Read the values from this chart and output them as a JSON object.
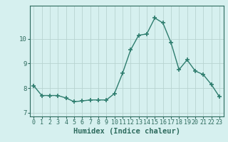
{
  "x": [
    0,
    1,
    2,
    3,
    4,
    5,
    6,
    7,
    8,
    9,
    10,
    11,
    12,
    13,
    14,
    15,
    16,
    17,
    18,
    19,
    20,
    21,
    22,
    23
  ],
  "y": [
    8.1,
    7.7,
    7.7,
    7.7,
    7.6,
    7.45,
    7.48,
    7.52,
    7.52,
    7.52,
    7.78,
    8.6,
    9.55,
    10.15,
    10.2,
    10.85,
    10.65,
    9.85,
    8.75,
    9.15,
    8.7,
    8.55,
    8.15,
    7.65
  ],
  "xlabel": "Humidex (Indice chaleur)",
  "xlim": [
    -0.5,
    23.5
  ],
  "ylim": [
    6.85,
    11.35
  ],
  "yticks": [
    7,
    8,
    9,
    10
  ],
  "xticks": [
    0,
    1,
    2,
    3,
    4,
    5,
    6,
    7,
    8,
    9,
    10,
    11,
    12,
    13,
    14,
    15,
    16,
    17,
    18,
    19,
    20,
    21,
    22,
    23
  ],
  "line_color": "#2e7d6e",
  "marker": "+",
  "marker_size": 4.0,
  "bg_color": "#d6f0ef",
  "grid_color": "#b8d4d0",
  "axes_color": "#2e6b5e",
  "xlabel_fontsize": 7.5,
  "tick_fontsize": 6.0,
  "ytick_fontsize": 6.5,
  "line_width": 1.0
}
